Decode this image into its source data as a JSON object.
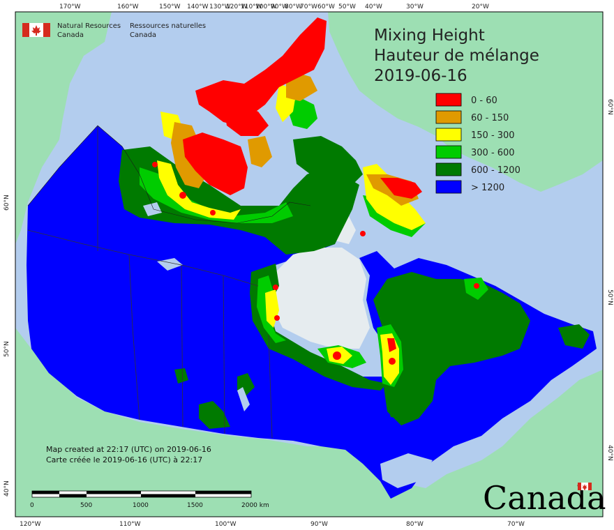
{
  "agency": {
    "en_line1": "Natural Resources",
    "en_line2": "Canada",
    "fr_line1": "Ressources naturelles",
    "fr_line2": "Canada"
  },
  "title": {
    "line1": "Mixing Height",
    "line2": "Hauteur de mélange",
    "date": "2019-06-16"
  },
  "legend": [
    {
      "label": "0 - 60",
      "color": "#ff0000"
    },
    {
      "label": "60 - 150",
      "color": "#e09a00"
    },
    {
      "label": "150 - 300",
      "color": "#ffff00"
    },
    {
      "label": "300 - 600",
      "color": "#00cc00"
    },
    {
      "label": "600 - 1200",
      "color": "#007a00"
    },
    {
      "label": "> 1200",
      "color": "#0000ff"
    }
  ],
  "notes": {
    "created_en": "Map created at 22:17 (UTC) on 2019-06-16",
    "created_fr": "Carte créée le 2019-06-16 (UTC) à 22:17"
  },
  "scale_bar": {
    "labels": [
      "0",
      "500",
      "1000",
      "1500",
      "2000  km"
    ]
  },
  "graticule": {
    "top": [
      "170°W",
      "160°W",
      "150°W",
      "140°W",
      "130°W",
      "120°W",
      "110°W",
      "100°W",
      "90°W",
      "80°W",
      "70°W",
      "60°W",
      "50°W",
      "40°W",
      "30°W",
      "20°W"
    ],
    "bottom": [
      "120°W",
      "110°W",
      "100°W",
      "90°W",
      "80°W",
      "70°W"
    ],
    "left": [
      "60°N",
      "50°N",
      "40°N"
    ],
    "right": [
      "60°N",
      "50°N",
      "40°N"
    ]
  },
  "wordmark": "Canada",
  "colors": {
    "ocean": "#b3cdee",
    "foreign_land": "#9ddfb3",
    "nodata_land": "#e6ecef"
  }
}
